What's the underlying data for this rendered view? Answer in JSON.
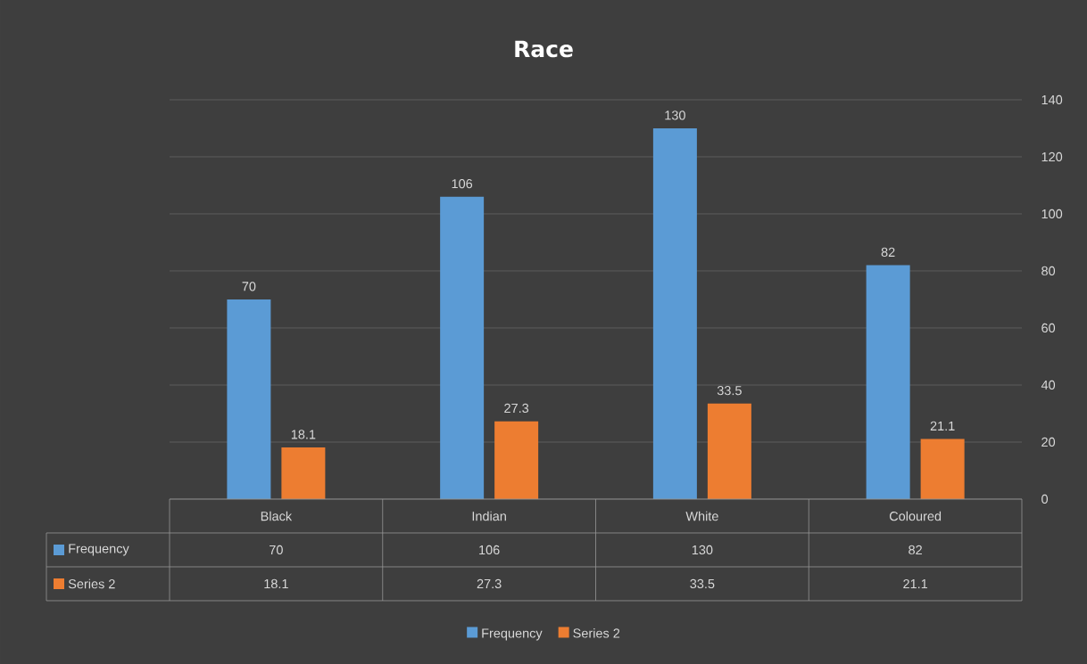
{
  "chart_data": {
    "type": "bar",
    "title": "Race",
    "categories": [
      "Black",
      "Indian",
      "White",
      "Coloured"
    ],
    "series": [
      {
        "name": "Frequency",
        "color": "#5b9bd5",
        "values": [
          70,
          106,
          130,
          82
        ],
        "value_labels": [
          "70",
          "106",
          "130",
          "82"
        ]
      },
      {
        "name": "Series 2",
        "color": "#ed7d31",
        "values": [
          18.1,
          27.3,
          33.5,
          21.1
        ],
        "value_labels": [
          "18.1",
          "27.3",
          "33.5",
          "21.1"
        ]
      }
    ],
    "ylim": [
      0,
      140
    ],
    "yticks": [
      0,
      20,
      40,
      60,
      80,
      100,
      120,
      140
    ],
    "grid": "y",
    "legend": "bottom",
    "annotations": [
      "70",
      "106",
      "130",
      "82",
      "18.1",
      "27.3",
      "33.5",
      "21.1"
    ]
  }
}
